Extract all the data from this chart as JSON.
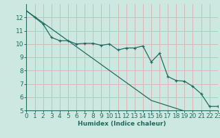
{
  "xlabel": "Humidex (Indice chaleur)",
  "bg_color": "#cce8e0",
  "grid_color": "#d4b8b8",
  "line_color": "#1e6b5e",
  "x_data": [
    0,
    1,
    2,
    3,
    4,
    5,
    6,
    7,
    8,
    9,
    10,
    11,
    12,
    13,
    14,
    15,
    16,
    17,
    18,
    19,
    20,
    21,
    22,
    23
  ],
  "y_curve": [
    12.5,
    12.0,
    11.5,
    10.5,
    10.25,
    10.25,
    10.0,
    10.05,
    10.05,
    9.9,
    10.0,
    9.55,
    9.7,
    9.7,
    9.85,
    8.65,
    9.3,
    7.55,
    7.25,
    7.2,
    6.8,
    6.25,
    5.3,
    5.3
  ],
  "y_line": [
    12.5,
    12.05,
    11.6,
    11.15,
    10.7,
    10.25,
    9.8,
    9.35,
    8.9,
    8.45,
    8.0,
    7.55,
    7.1,
    6.65,
    6.2,
    5.75,
    5.55,
    5.35,
    5.15,
    4.95,
    4.8,
    4.65,
    4.55,
    4.5
  ],
  "ylim": [
    5,
    13
  ],
  "xlim": [
    0,
    23
  ],
  "yticks": [
    5,
    6,
    7,
    8,
    9,
    10,
    11,
    12
  ],
  "xticks": [
    0,
    1,
    2,
    3,
    4,
    5,
    6,
    7,
    8,
    9,
    10,
    11,
    12,
    13,
    14,
    15,
    16,
    17,
    18,
    19,
    20,
    21,
    22,
    23
  ],
  "fontsize": 6.5
}
